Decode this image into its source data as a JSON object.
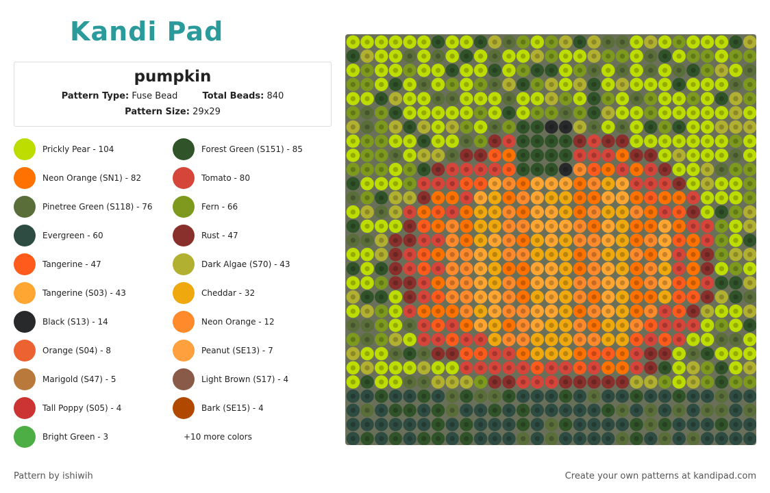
{
  "logo": "Kandi Pad",
  "pattern": {
    "title": "pumpkin",
    "type_label": "Pattern Type:",
    "type": "Fuse Bead",
    "total_label": "Total Beads:",
    "total": 840,
    "size_label": "Pattern Size:",
    "size": "29x29"
  },
  "colors": [
    {
      "name": "Prickly Pear - 104",
      "color": "#bddc00"
    },
    {
      "name": "Forest Green (S151) - 85",
      "color": "#31532a"
    },
    {
      "name": "Neon Orange (SN1) - 82",
      "color": "#ff7200"
    },
    {
      "name": "Tomato - 80",
      "color": "#d5453a"
    },
    {
      "name": "Pinetree Green (S118) - 76",
      "color": "#5a6e3a"
    },
    {
      "name": "Fern - 66",
      "color": "#7d9a1e"
    },
    {
      "name": "Evergreen - 60",
      "color": "#2f4c42"
    },
    {
      "name": "Rust - 47",
      "color": "#8a302c"
    },
    {
      "name": "Tangerine - 47",
      "color": "#ff5b1d"
    },
    {
      "name": "Dark Algae (S70) - 43",
      "color": "#b2b030"
    },
    {
      "name": "Tangerine (S03) - 43",
      "color": "#ffa632"
    },
    {
      "name": "Cheddar - 32",
      "color": "#f0a80f"
    },
    {
      "name": "Black (S13) - 14",
      "color": "#28292b"
    },
    {
      "name": "Neon Orange - 12",
      "color": "#ff8a2c"
    },
    {
      "name": "Orange (S04) - 8",
      "color": "#ec6230"
    },
    {
      "name": "Peanut (SE13) - 7",
      "color": "#ffa03e"
    },
    {
      "name": "Marigold (S47) - 5",
      "color": "#b8793a"
    },
    {
      "name": "Light Brown (S17) - 4",
      "color": "#8a5a48"
    },
    {
      "name": "Tall Poppy (S05) - 4",
      "color": "#cc3333"
    },
    {
      "name": "Bark (SE15) - 4",
      "color": "#b04800"
    },
    {
      "name": "Bright Green - 3",
      "color": "#4cae44"
    }
  ],
  "more_colors": "+10 more colors",
  "footer": {
    "left": "Pattern by ishiwih",
    "right": "Create your own patterns at kandipad.com"
  }
}
